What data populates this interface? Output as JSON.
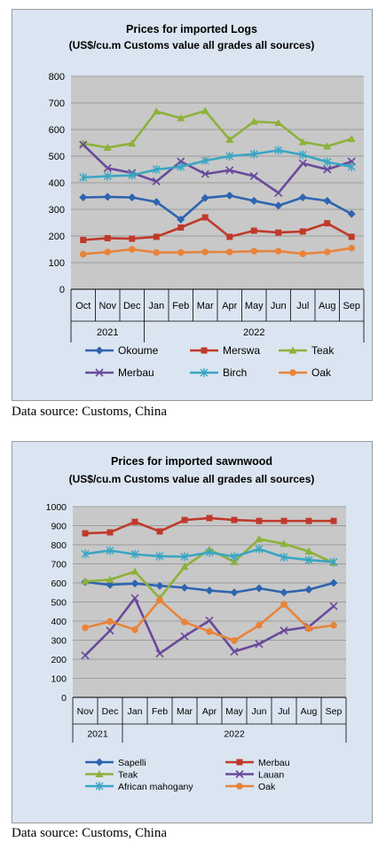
{
  "charts_meta": {
    "source_note_1": "Data source: Customs, China",
    "source_note_2": "Data source: Customs, China"
  },
  "chart_data": [
    {
      "type": "line",
      "title": "Prices for imported Logs",
      "subtitle": "(US$/cu.m Customs value all grades all sources)",
      "xlabel": "",
      "ylabel": "",
      "ylim": [
        0,
        800
      ],
      "yticks": [
        "0",
        "100",
        "200",
        "300",
        "400",
        "500",
        "600",
        "700",
        "800"
      ],
      "grid": true,
      "legend_position": "bottom",
      "categories": [
        "Oct",
        "Nov",
        "Dec",
        "Jan",
        "Feb",
        "Mar",
        "Apr",
        "May",
        "Jun",
        "Jul",
        "Aug",
        "Sep"
      ],
      "year_groups": [
        {
          "label": "2021",
          "span": 3
        },
        {
          "label": "2022",
          "span": 9
        }
      ],
      "series": [
        {
          "name": "Okoume",
          "color": "#2e64b0",
          "marker": "diamond",
          "values": [
            345,
            347,
            345,
            328,
            262,
            343,
            352,
            332,
            314,
            345,
            332,
            283
          ]
        },
        {
          "name": "Merswa",
          "color": "#c0392b",
          "marker": "square",
          "values": [
            185,
            192,
            190,
            197,
            232,
            270,
            197,
            220,
            213,
            217,
            248,
            197
          ]
        },
        {
          "name": "Teak",
          "color": "#8db13a",
          "marker": "triangle",
          "values": [
            548,
            532,
            548,
            668,
            643,
            670,
            562,
            630,
            625,
            553,
            537,
            565
          ]
        },
        {
          "name": "Merbau",
          "color": "#6a4a9a",
          "marker": "x",
          "values": [
            543,
            455,
            437,
            405,
            480,
            433,
            447,
            425,
            362,
            473,
            450,
            480
          ]
        },
        {
          "name": "Birch",
          "color": "#3aa6c3",
          "marker": "star",
          "values": [
            420,
            425,
            428,
            450,
            460,
            483,
            500,
            508,
            522,
            505,
            478,
            460
          ]
        },
        {
          "name": "Oak",
          "color": "#e8843a",
          "marker": "circle",
          "values": [
            132,
            140,
            150,
            138,
            138,
            140,
            140,
            143,
            143,
            133,
            140,
            155
          ]
        }
      ]
    },
    {
      "type": "line",
      "title": "Prices for imported sawnwood",
      "subtitle": "(US$/cu.m Customs value all grades all sources)",
      "xlabel": "",
      "ylabel": "",
      "ylim": [
        0,
        1000
      ],
      "yticks": [
        "0",
        "100",
        "200",
        "300",
        "400",
        "500",
        "600",
        "700",
        "800",
        "900",
        "1000"
      ],
      "grid": true,
      "legend_position": "bottom",
      "categories": [
        "Nov",
        "Dec",
        "Jan",
        "Feb",
        "Mar",
        "Apr",
        "May",
        "Jun",
        "Jul",
        "Aug",
        "Sep"
      ],
      "year_groups": [
        {
          "label": "2021",
          "span": 2
        },
        {
          "label": "2022",
          "span": 9
        }
      ],
      "series": [
        {
          "name": "Sapelli",
          "color": "#2e64b0",
          "marker": "diamond",
          "values": [
            605,
            590,
            597,
            585,
            575,
            560,
            550,
            572,
            550,
            565,
            600
          ]
        },
        {
          "name": "Merbau",
          "color": "#c0392b",
          "marker": "square",
          "values": [
            860,
            865,
            920,
            870,
            930,
            940,
            930,
            925,
            925,
            925,
            925
          ]
        },
        {
          "name": "Teak",
          "color": "#8db13a",
          "marker": "triangle",
          "values": [
            608,
            617,
            660,
            520,
            685,
            775,
            710,
            830,
            805,
            765,
            705
          ]
        },
        {
          "name": "Lauan",
          "color": "#6a4a9a",
          "marker": "x",
          "values": [
            220,
            350,
            520,
            230,
            320,
            403,
            240,
            280,
            350,
            370,
            478
          ]
        },
        {
          "name": "African mahogany",
          "color": "#3aa6c3",
          "marker": "star",
          "values": [
            752,
            770,
            750,
            740,
            738,
            760,
            738,
            778,
            735,
            720,
            710
          ]
        },
        {
          "name": "Oak",
          "color": "#e8843a",
          "marker": "circle",
          "values": [
            365,
            398,
            355,
            510,
            395,
            345,
            298,
            378,
            488,
            360,
            378
          ]
        }
      ]
    }
  ]
}
